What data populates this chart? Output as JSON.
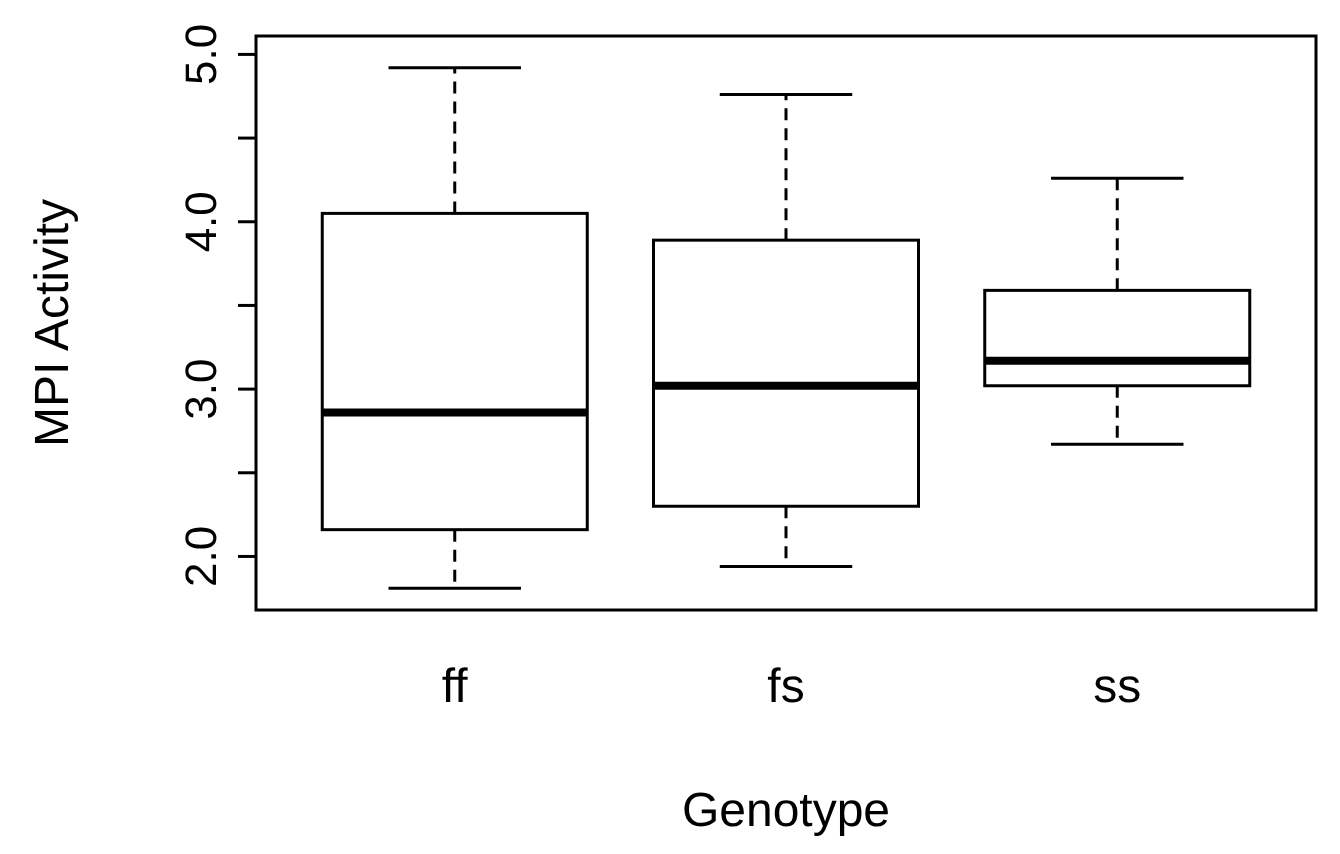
{
  "chart_data": {
    "type": "box",
    "xlabel": "Genotype",
    "ylabel": "MPI Activity",
    "categories": [
      "ff",
      "fs",
      "ss"
    ],
    "boxes": [
      {
        "low": 1.81,
        "q1": 2.16,
        "median": 2.86,
        "q3": 4.05,
        "high": 4.92
      },
      {
        "low": 1.94,
        "q1": 2.3,
        "median": 3.02,
        "q3": 3.89,
        "high": 4.76
      },
      {
        "low": 2.67,
        "q1": 3.02,
        "median": 3.17,
        "q3": 3.59,
        "high": 4.26
      }
    ],
    "color": "#ffffff",
    "ylim": [
      1.68,
      5.11
    ],
    "yticks": [
      {
        "value": 2,
        "label": "2.0"
      },
      {
        "value": 2.5,
        "label": null
      },
      {
        "value": 3,
        "label": "3.0"
      },
      {
        "value": 3.5,
        "label": null
      },
      {
        "value": 4,
        "label": "4.0"
      },
      {
        "value": 4.5,
        "label": null
      },
      {
        "value": 5,
        "label": "5.0"
      }
    ],
    "grid": false
  }
}
